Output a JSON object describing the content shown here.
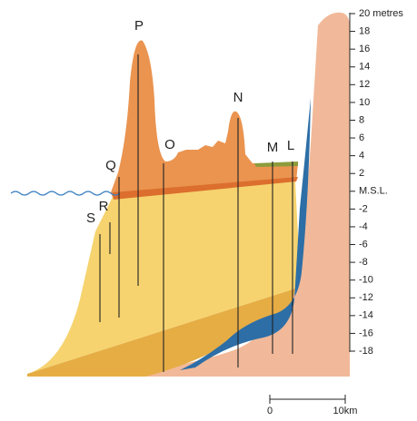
{
  "axis": {
    "labels": [
      "20 metres",
      "18",
      "16",
      "14",
      "12",
      "10",
      "8",
      "6",
      "4",
      "2",
      "M.S.L.",
      "-2",
      "-4",
      "-6",
      "-8",
      "-10",
      "-12",
      "-14",
      "-16",
      "-18"
    ]
  },
  "points": [
    {
      "label": "P"
    },
    {
      "label": "Q"
    },
    {
      "label": "O"
    },
    {
      "label": "N"
    },
    {
      "label": "M"
    },
    {
      "label": "L"
    },
    {
      "label": "S"
    },
    {
      "label": "R"
    }
  ],
  "scale_bar": {
    "start": "0",
    "end": "10km"
  }
}
